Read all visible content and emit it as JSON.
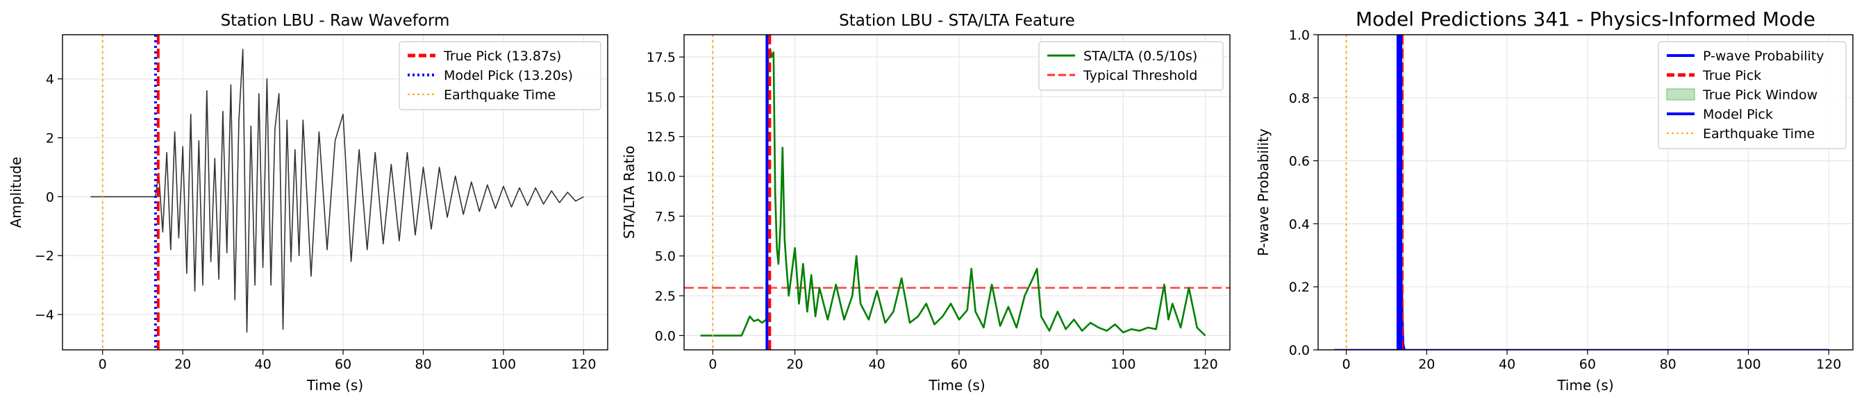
{
  "chart_data": [
    {
      "type": "line",
      "title": "Station LBU - Raw Waveform",
      "xlabel": "Time (s)",
      "ylabel": "Amplitude",
      "xlim": [
        -10,
        126
      ],
      "ylim": [
        -5.2,
        5.5
      ],
      "xticks": [
        0,
        20,
        40,
        60,
        80,
        100,
        120
      ],
      "yticks": [
        -4,
        -2,
        0,
        2,
        4
      ],
      "grid": true,
      "legend": "top-right",
      "series": [
        {
          "name": "Waveform",
          "color": "#333333",
          "x": [
            -3,
            13.2,
            14,
            15,
            16,
            17,
            18,
            19,
            20,
            21,
            22,
            23,
            24,
            25,
            26,
            27,
            28,
            29,
            30,
            31,
            32,
            33,
            34,
            35,
            36,
            37,
            38,
            39,
            40,
            41,
            42,
            43,
            44,
            45,
            46,
            47,
            48,
            49,
            50,
            52,
            54,
            56,
            58,
            60,
            62,
            64,
            66,
            68,
            70,
            72,
            74,
            76,
            78,
            80,
            82,
            84,
            86,
            88,
            90,
            92,
            94,
            96,
            98,
            100,
            102,
            104,
            106,
            108,
            110,
            112,
            114,
            116,
            118,
            120
          ],
          "y": [
            0,
            0,
            0.8,
            -1.2,
            1.5,
            -1.8,
            2.2,
            -1.4,
            1.7,
            -2.6,
            2.8,
            -3.2,
            1.9,
            -3.0,
            3.6,
            -2.2,
            1.3,
            -2.8,
            2.9,
            -1.9,
            3.8,
            -3.5,
            2.6,
            5.0,
            -4.6,
            2.4,
            -3.0,
            3.5,
            -2.4,
            4.0,
            -3.0,
            2.3,
            3.5,
            -4.5,
            2.6,
            -2.2,
            1.6,
            -2.0,
            2.6,
            -2.7,
            2.2,
            -1.8,
            1.9,
            2.8,
            -2.2,
            1.6,
            -1.8,
            1.5,
            -1.6,
            1.1,
            -1.5,
            1.5,
            -1.3,
            1.0,
            -1.1,
            1.0,
            -0.7,
            0.7,
            -0.6,
            0.5,
            -0.5,
            0.4,
            -0.4,
            0.35,
            -0.35,
            0.3,
            -0.3,
            0.3,
            -0.25,
            0.2,
            -0.2,
            0.15,
            -0.15,
            0
          ]
        }
      ],
      "vlines": [
        {
          "name": "True Pick (13.87s)",
          "x": 13.87,
          "color": "#ff0000",
          "style": "dashed"
        },
        {
          "name": "Model Pick (13.20s)",
          "x": 13.2,
          "color": "#0000ff",
          "style": "dotted"
        },
        {
          "name": "Earthquake Time",
          "x": 0,
          "color": "#ffa500",
          "style": "dotted"
        }
      ]
    },
    {
      "type": "line",
      "title": "Station LBU - STA/LTA Feature",
      "xlabel": "Time (s)",
      "ylabel": "STA/LTA Ratio",
      "xlim": [
        -7,
        126
      ],
      "ylim": [
        -0.9,
        18.9
      ],
      "xticks": [
        0,
        20,
        40,
        60,
        80,
        100,
        120
      ],
      "yticks": [
        0.0,
        2.5,
        5.0,
        7.5,
        10.0,
        12.5,
        15.0,
        17.5
      ],
      "ytick_labels": [
        "0.0",
        "2.5",
        "5.0",
        "7.5",
        "10.0",
        "12.5",
        "15.0",
        "17.5"
      ],
      "grid": true,
      "legend": "top-right",
      "series": [
        {
          "name": "STA/LTA (0.5/10s)",
          "color": "#008000",
          "x": [
            -3,
            7,
            7.2,
            9,
            10,
            11,
            12,
            13,
            13.5,
            14,
            14.3,
            14.8,
            15.2,
            15.6,
            16,
            16.5,
            17,
            17.5,
            18,
            18.5,
            19,
            20,
            21,
            22,
            23,
            24,
            25,
            26,
            28,
            30,
            32,
            34,
            35,
            36,
            38,
            40,
            42,
            44,
            46,
            48,
            50,
            52,
            54,
            56,
            58,
            60,
            62,
            63,
            64,
            66,
            68,
            70,
            72,
            74,
            76,
            78,
            79,
            80,
            82,
            84,
            86,
            88,
            90,
            92,
            94,
            96,
            98,
            100,
            102,
            104,
            106,
            108,
            110,
            111,
            112,
            114,
            116,
            118,
            120
          ],
          "y": [
            0,
            0,
            0.1,
            1.2,
            0.9,
            1.0,
            0.8,
            1.0,
            17.9,
            18.0,
            17.5,
            17.8,
            9.0,
            5.5,
            4.5,
            7.0,
            11.8,
            6.0,
            4.2,
            2.5,
            3.5,
            5.5,
            2.0,
            4.5,
            1.5,
            3.8,
            1.2,
            3.0,
            1.0,
            3.2,
            1.0,
            2.5,
            5.0,
            2.0,
            1.0,
            2.8,
            0.8,
            1.5,
            3.6,
            0.8,
            1.2,
            2.0,
            0.7,
            1.2,
            2.0,
            1.0,
            1.6,
            4.2,
            1.5,
            0.5,
            3.2,
            0.6,
            1.8,
            0.5,
            2.5,
            3.6,
            4.2,
            1.2,
            0.3,
            1.5,
            0.4,
            1.0,
            0.3,
            0.8,
            0.5,
            0.3,
            0.7,
            0.2,
            0.4,
            0.3,
            0.5,
            0.4,
            3.2,
            1.0,
            2.0,
            0.5,
            3.0,
            0.5,
            0.0
          ]
        }
      ],
      "hlines": [
        {
          "name": "Typical Threshold",
          "y": 3.0,
          "color": "#ff0000",
          "style": "dashed"
        }
      ],
      "vlines": [
        {
          "x": 0,
          "color": "#ffa500",
          "style": "dotted"
        },
        {
          "x": 13.2,
          "color": "#0000ff",
          "style": "solid"
        },
        {
          "x": 13.87,
          "color": "#ff0000",
          "style": "dashed"
        }
      ]
    },
    {
      "type": "line",
      "title": "Model Predictions 341 - Physics-Informed Mode",
      "xlabel": "Time (s)",
      "ylabel": "P-wave Probability",
      "xlim": [
        -7,
        126
      ],
      "ylim": [
        0.0,
        1.0
      ],
      "xticks": [
        0,
        20,
        40,
        60,
        80,
        100,
        120
      ],
      "yticks": [
        0.0,
        0.2,
        0.4,
        0.6,
        0.8,
        1.0
      ],
      "ytick_labels": [
        "0.0",
        "0.2",
        "0.4",
        "0.6",
        "0.8",
        "1.0"
      ],
      "grid": true,
      "legend": "top-right",
      "series": [
        {
          "name": "P-wave Probability",
          "color": "#0000ff",
          "x": [
            -3,
            12.8,
            13.0,
            13.2,
            13.4,
            13.6,
            13.9,
            14.2,
            14.5,
            120
          ],
          "y": [
            0,
            0,
            0.35,
            0.55,
            0.45,
            0.3,
            0.15,
            0.02,
            0,
            0
          ]
        }
      ],
      "legend_entries": [
        "P-wave Probability",
        "True Pick",
        "True Pick Window",
        "Model Pick",
        "Earthquake Time"
      ],
      "spans": [
        {
          "name": "True Pick Window",
          "x": [
            13.37,
            14.37
          ],
          "color": "#2ca02c"
        }
      ],
      "vlines": [
        {
          "name": "True Pick",
          "x": 13.87,
          "color": "#ff0000",
          "style": "dashed"
        },
        {
          "name": "Model Pick",
          "x": 13.2,
          "color": "#0000ff",
          "style": "solid"
        },
        {
          "name": "Earthquake Time",
          "x": 0,
          "color": "#ffa500",
          "style": "dotted"
        }
      ]
    }
  ]
}
